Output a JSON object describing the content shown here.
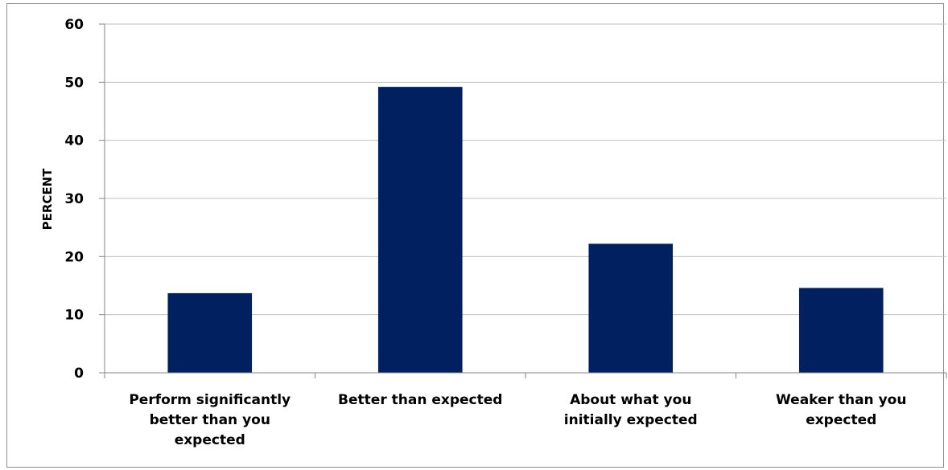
{
  "chart_data": {
    "type": "bar",
    "categories": [
      "Perform significantly better than you expected",
      "Better than expected",
      "About what you initially expected",
      "Weaker than you expected"
    ],
    "category_label_lines": [
      [
        "Perform significantly",
        "better than you",
        "expected"
      ],
      [
        "Better than expected"
      ],
      [
        "About what you",
        "initially expected"
      ],
      [
        "Weaker than you",
        "expected"
      ]
    ],
    "values": [
      13.7,
      49.2,
      22.2,
      14.6
    ],
    "ylabel": "PERCENT",
    "xlabel": "",
    "ylim": [
      0,
      60
    ],
    "yticks": [
      "0",
      "10",
      "20",
      "30",
      "40",
      "50",
      "60"
    ],
    "grid": true,
    "legend": "none",
    "bar_color": "#002060",
    "grid_color": "#bfbfbf",
    "axis_color": "#868686"
  }
}
